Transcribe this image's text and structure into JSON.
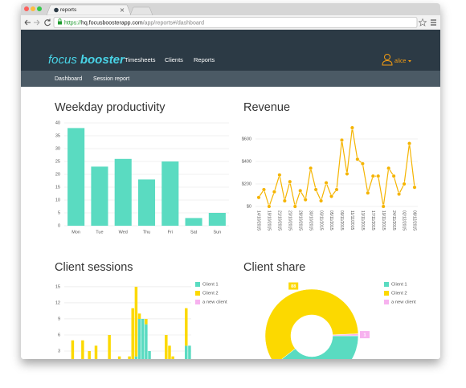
{
  "browser": {
    "tab_title": "reports",
    "url_scheme": "https://",
    "url_host": "hq.focusboosterapp.com",
    "url_path": "/app/reports#/dashboard"
  },
  "nav": {
    "logo_1": "focus",
    "logo_2": "booster",
    "items": [
      "Timesheets",
      "Clients",
      "Reports"
    ],
    "user": "alice"
  },
  "subnav": [
    "Dashboard",
    "Session report"
  ],
  "chart_data": [
    {
      "type": "bar",
      "title": "Weekday productivity",
      "categories": [
        "Mon",
        "Tue",
        "Wed",
        "Thu",
        "Fri",
        "Sat",
        "Sun"
      ],
      "values": [
        38,
        23,
        26,
        18,
        25,
        3,
        5
      ],
      "color": "#5adbc1",
      "ylim": [
        0,
        40
      ],
      "yticks": [
        0,
        5,
        10,
        15,
        20,
        25,
        30,
        35,
        40
      ],
      "grid": true
    },
    {
      "type": "line",
      "title": "Revenue",
      "categories": [
        "14/10/2015",
        null,
        "19/10/2015",
        null,
        "21/10/2015",
        null,
        "23/10/2015",
        null,
        "28/10/2015",
        null,
        "30/10/2015",
        null,
        "03/11/2015",
        null,
        "05/11/2015",
        null,
        "09/11/2015",
        null,
        "11/11/2015",
        null,
        "13/11/2015",
        null,
        "17/11/2015",
        null,
        "19/11/2015",
        null,
        "24/11/2015",
        null,
        "02/12/2015",
        null,
        "08/12/2015"
      ],
      "values": [
        80,
        150,
        0,
        130,
        280,
        50,
        220,
        0,
        140,
        60,
        340,
        150,
        50,
        210,
        90,
        150,
        590,
        290,
        700,
        420,
        380,
        120,
        270,
        270,
        0,
        340,
        270,
        110,
        200,
        560,
        170
      ],
      "color": "#f5b400",
      "ylim": [
        0,
        750
      ],
      "yticks": [
        {
          "value": 0,
          "label": "$0"
        },
        {
          "value": 200,
          "label": "$200"
        },
        {
          "value": 400,
          "label": "$400"
        },
        {
          "value": 600,
          "label": "$600"
        }
      ],
      "grid": true
    },
    {
      "type": "stacked_bar",
      "title": "Client sessions",
      "categories": [
        null,
        null,
        null,
        null,
        null,
        null,
        null,
        null,
        null,
        null,
        null,
        null,
        null,
        null,
        null,
        null,
        null,
        null,
        null,
        null,
        null,
        null,
        null,
        null,
        null,
        null,
        null,
        null,
        null,
        null,
        null,
        null,
        null,
        null,
        null,
        null,
        null,
        null
      ],
      "series": [
        {
          "name": "Client 1",
          "color": "#5adbc1",
          "values": [
            1,
            1,
            1,
            1,
            0,
            0,
            0,
            0,
            0,
            0,
            0,
            0,
            0,
            0,
            0,
            0,
            0,
            1,
            1,
            1,
            1,
            2,
            9,
            9,
            8,
            3,
            0,
            0,
            0,
            0,
            1,
            0,
            1,
            0,
            0,
            0,
            4,
            4
          ]
        },
        {
          "name": "Client 2",
          "color": "#fcd900",
          "values": [
            0,
            0,
            4,
            0,
            0,
            5,
            0,
            3,
            0,
            4,
            0,
            0,
            0,
            6,
            0,
            0,
            2,
            0,
            0,
            1,
            10,
            13,
            1,
            0,
            1,
            0,
            0,
            0,
            0,
            0,
            5,
            4,
            1,
            0,
            0,
            0,
            7,
            0
          ]
        },
        {
          "name": "a new client",
          "color": "#f7b2ef",
          "values": [
            0,
            0,
            0,
            0,
            0,
            0,
            0,
            0,
            0,
            0,
            0,
            0,
            0,
            0,
            0,
            0,
            0,
            0,
            0,
            0,
            0,
            0,
            0,
            0,
            0,
            0,
            0,
            0,
            0,
            1,
            0,
            0,
            0,
            0,
            0,
            0,
            0,
            0
          ]
        }
      ],
      "ylim": [
        0,
        16
      ],
      "yticks": [
        3,
        6,
        9,
        12,
        15
      ],
      "grid": true,
      "legend": "right"
    },
    {
      "type": "donut",
      "title": "Client share",
      "categories": [
        "Client 1",
        "Client 2",
        "a new client"
      ],
      "values": [
        58,
        88,
        1
      ],
      "colors": [
        "#5adbc1",
        "#fcd900",
        "#f7b2ef"
      ],
      "legend": "right"
    }
  ]
}
